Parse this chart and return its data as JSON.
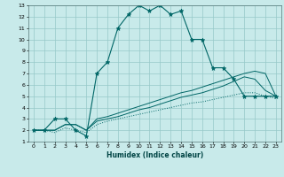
{
  "xlabel": "Humidex (Indice chaleur)",
  "bg_color": "#c8eaea",
  "grid_color": "#96c8c8",
  "line_color": "#006666",
  "xlim": [
    -0.5,
    23.5
  ],
  "ylim": [
    1,
    13
  ],
  "xticks": [
    0,
    1,
    2,
    3,
    4,
    5,
    6,
    7,
    8,
    9,
    10,
    11,
    12,
    13,
    14,
    15,
    16,
    17,
    18,
    19,
    20,
    21,
    22,
    23
  ],
  "yticks": [
    1,
    2,
    3,
    4,
    5,
    6,
    7,
    8,
    9,
    10,
    11,
    12,
    13
  ],
  "line1_x": [
    0,
    1,
    2,
    3,
    4,
    5,
    6,
    7,
    8,
    9,
    10,
    11,
    12,
    13,
    14,
    15,
    16,
    17,
    18,
    19,
    20,
    21,
    22,
    23
  ],
  "line1_y": [
    2,
    2,
    3,
    3,
    2,
    1.5,
    7,
    8,
    11,
    12.2,
    13,
    12.5,
    13,
    12.2,
    12.5,
    10,
    10,
    7.5,
    7.5,
    6.5,
    5,
    5,
    5,
    5
  ],
  "line2_x": [
    0,
    1,
    2,
    3,
    4,
    5,
    6,
    7,
    8,
    9,
    10,
    11,
    12,
    13,
    14,
    15,
    16,
    17,
    18,
    19,
    20,
    21,
    22,
    23
  ],
  "line2_y": [
    2,
    2,
    1.8,
    2.2,
    2,
    1.8,
    2.5,
    2.8,
    3.0,
    3.2,
    3.4,
    3.6,
    3.8,
    4.0,
    4.2,
    4.4,
    4.5,
    4.7,
    4.9,
    5.1,
    5.3,
    5.3,
    5.0,
    4.8
  ],
  "line3_x": [
    0,
    1,
    2,
    3,
    4,
    5,
    6,
    7,
    8,
    9,
    10,
    11,
    12,
    13,
    14,
    15,
    16,
    17,
    18,
    19,
    20,
    21,
    22,
    23
  ],
  "line3_y": [
    2,
    2,
    2,
    2.5,
    2.5,
    2,
    2.8,
    3.0,
    3.2,
    3.5,
    3.8,
    4.0,
    4.3,
    4.6,
    4.9,
    5.1,
    5.3,
    5.6,
    5.9,
    6.3,
    6.7,
    6.5,
    5.5,
    5.0
  ],
  "line4_x": [
    0,
    1,
    2,
    3,
    4,
    5,
    6,
    7,
    8,
    9,
    10,
    11,
    12,
    13,
    14,
    15,
    16,
    17,
    18,
    19,
    20,
    21,
    22,
    23
  ],
  "line4_y": [
    2,
    2,
    2,
    2.5,
    2.5,
    2,
    3.0,
    3.2,
    3.5,
    3.8,
    4.1,
    4.4,
    4.7,
    5.0,
    5.3,
    5.5,
    5.8,
    6.1,
    6.4,
    6.7,
    7.0,
    7.2,
    7.0,
    5.0
  ]
}
